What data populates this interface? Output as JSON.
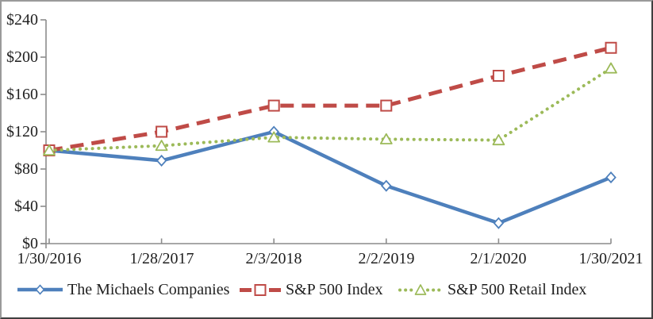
{
  "chart_data": {
    "type": "line",
    "title": "",
    "x": [
      "1/30/2016",
      "1/28/2017",
      "2/3/2018",
      "2/2/2019",
      "2/1/2020",
      "1/30/2021"
    ],
    "ytick_labels": [
      "$0",
      "$40",
      "$80",
      "$120",
      "$160",
      "$200",
      "$240"
    ],
    "ylim": [
      0,
      240
    ],
    "ytick_step": 40,
    "grid": false,
    "legend_position": "bottom",
    "series": [
      {
        "name": "The Michaels Companies",
        "values": [
          100,
          89,
          120,
          62,
          22,
          71
        ],
        "color": "#4e80bc",
        "marker": "diamond",
        "line_style": "solid"
      },
      {
        "name": "S&P 500 Index",
        "values": [
          100,
          120,
          148,
          148,
          180,
          210
        ],
        "color": "#bf4b47",
        "marker": "square",
        "line_style": "dashed"
      },
      {
        "name": "S&P 500 Retail Index",
        "values": [
          100,
          105,
          114,
          112,
          111,
          188
        ],
        "color": "#9cba59",
        "marker": "triangle",
        "line_style": "dotted"
      }
    ],
    "axis_color": "#8c8c8c",
    "text_color": "#1f1f1f"
  }
}
